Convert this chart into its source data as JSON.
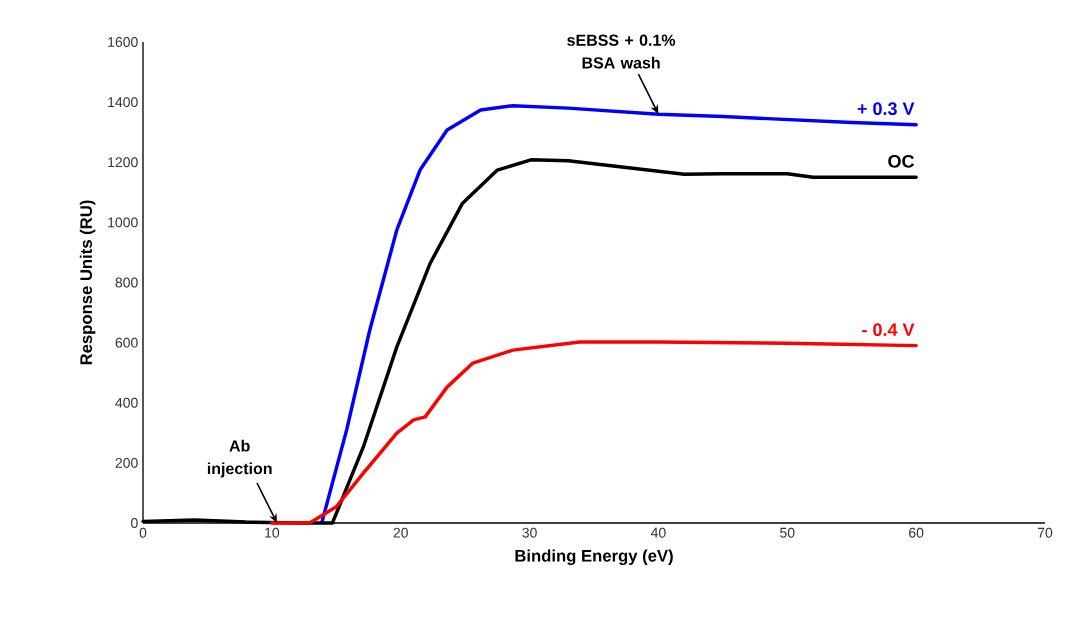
{
  "chart_data": {
    "type": "line",
    "xlabel": "Binding Energy (eV)",
    "ylabel": "Response Units (RU)",
    "xlim": [
      0,
      70
    ],
    "xticks": [
      0,
      10,
      20,
      30,
      40,
      50,
      60,
      70
    ],
    "ylim": [
      0,
      1600
    ],
    "yticks": [
      0,
      200,
      400,
      600,
      800,
      1000,
      1200,
      1400,
      1600
    ],
    "marker": "none",
    "line_style": "solid",
    "series": [
      {
        "name": "+ 0.3 V",
        "color": "#0000ff",
        "x": [
          13.9,
          15.8,
          17.6,
          19.7,
          21.5,
          23.6,
          26.2,
          28.7,
          33,
          40,
          45,
          50,
          55,
          60
        ],
        "values": [
          5,
          309,
          642,
          975,
          1174,
          1307,
          1374,
          1388,
          1380,
          1360,
          1352,
          1342,
          1332,
          1325
        ]
      },
      {
        "name": "OC",
        "color": "#000000",
        "x": [
          0,
          4,
          8,
          12,
          14.7,
          17.1,
          19.7,
          22.3,
          24.8,
          27.5,
          30.1,
          33,
          38,
          42,
          45,
          50,
          52,
          60
        ],
        "values": [
          5,
          10,
          3,
          0,
          0,
          253,
          586,
          865,
          1064,
          1174,
          1208,
          1205,
          1180,
          1160,
          1162,
          1162,
          1150,
          1150
        ]
      },
      {
        "name": "- 0.4 V",
        "color": "#ff0000",
        "x": [
          10,
          12,
          13,
          15,
          17.1,
          19.7,
          21,
          21.9,
          23.6,
          25.6,
          28.7,
          33.9,
          40,
          50,
          60
        ],
        "values": [
          0,
          0,
          2,
          54,
          166,
          299,
          343,
          353,
          452,
          532,
          575,
          602,
          602,
          598,
          590
        ]
      }
    ],
    "annotations": [
      {
        "text": "Ab injection",
        "x": 10.4,
        "y": 0
      },
      {
        "text": "sEBSS + 0.1% BSA wash",
        "x": 40,
        "y": 1360
      }
    ]
  }
}
